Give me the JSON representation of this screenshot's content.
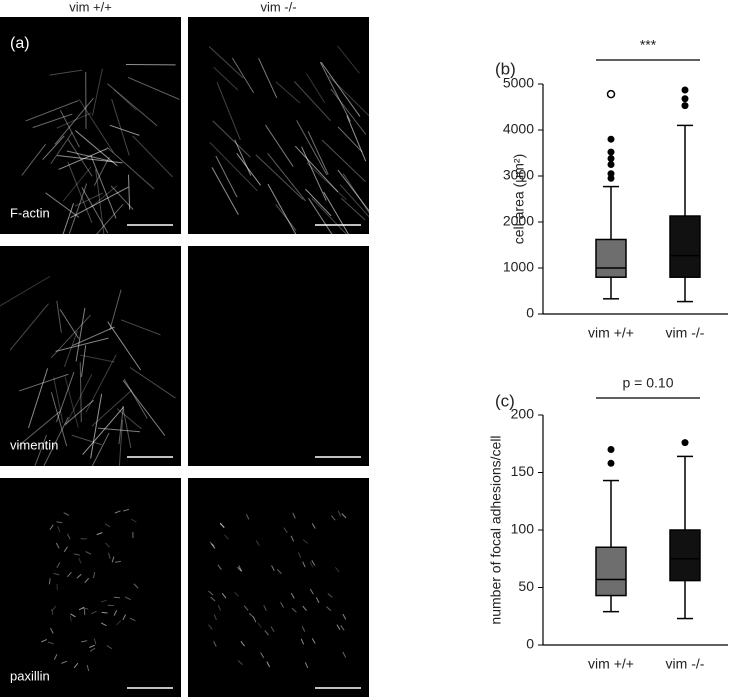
{
  "panel_a": {
    "label": "(a)",
    "columns": [
      "vim +/+",
      "vim -/-"
    ],
    "rows": [
      "F-actin",
      "vimentin",
      "paxillin"
    ]
  },
  "chart_data": [
    {
      "type": "box",
      "label": "(b)",
      "ylabel": "cell area (μm²)",
      "annotation": "***",
      "categories": [
        "vim +/+",
        "vim -/-"
      ],
      "ylim": [
        0,
        5000
      ],
      "yticks": [
        0,
        1000,
        2000,
        3000,
        4000,
        5000
      ],
      "boxes": [
        {
          "color": "#6e6e6e",
          "whislo": 330,
          "q1": 800,
          "med": 1000,
          "q3": 1620,
          "whishi": 2770,
          "fliers": [
            2950,
            3050,
            3250,
            3380,
            3520,
            3800
          ],
          "open_fliers": [
            4780
          ]
        },
        {
          "color": "#111111",
          "whislo": 270,
          "q1": 800,
          "med": 1270,
          "q3": 2130,
          "whishi": 4100,
          "fliers": [
            4530,
            4680,
            4870
          ],
          "open_fliers": []
        }
      ]
    },
    {
      "type": "box",
      "label": "(c)",
      "ylabel": "number of focal adhesions/cell",
      "annotation": "p = 0.10",
      "categories": [
        "vim +/+",
        "vim -/-"
      ],
      "ylim": [
        0,
        200
      ],
      "yticks": [
        0,
        50,
        100,
        150,
        200
      ],
      "boxes": [
        {
          "color": "#6e6e6e",
          "whislo": 29,
          "q1": 43,
          "med": 57,
          "q3": 85,
          "whishi": 143,
          "fliers": [
            158,
            170
          ],
          "open_fliers": []
        },
        {
          "color": "#111111",
          "whislo": 23,
          "q1": 56,
          "med": 75,
          "q3": 100,
          "whishi": 164,
          "fliers": [
            176
          ],
          "open_fliers": []
        }
      ]
    }
  ]
}
